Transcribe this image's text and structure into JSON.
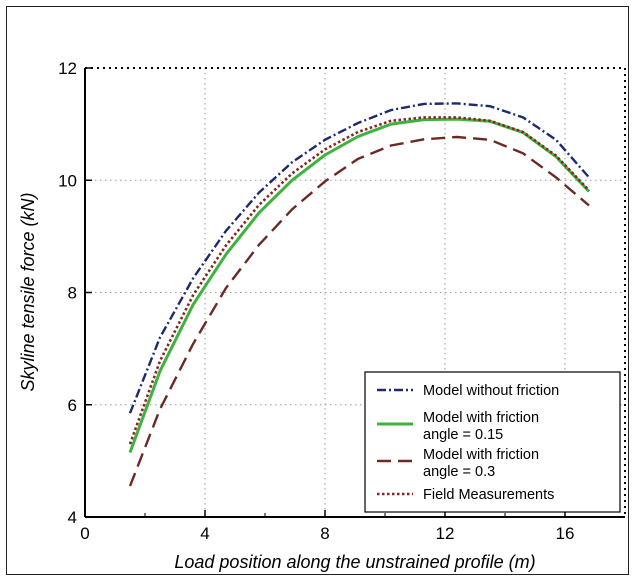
{
  "chart_data": {
    "type": "line",
    "title": "",
    "xlabel": "Load position along the unstrained profile  (m)",
    "ylabel": "Skyline tensile force (kN)",
    "xlim": [
      0,
      18
    ],
    "ylim": [
      4,
      12
    ],
    "xticks": [
      "0",
      "4",
      "8",
      "12",
      "16"
    ],
    "yticks": [
      "4",
      "6",
      "8",
      "10",
      "12"
    ],
    "grid": true,
    "legend_position": "bottom-right",
    "x": [
      1.5,
      2.5,
      3.6,
      4.7,
      5.8,
      6.9,
      8.0,
      9.1,
      10.2,
      11.3,
      12.4,
      13.5,
      14.6,
      15.7,
      16.8
    ],
    "series": [
      {
        "name": "Model without friction",
        "color": "#1f2a6e",
        "dash": "dashdot",
        "values": [
          5.85,
          7.2,
          8.25,
          9.1,
          9.78,
          10.32,
          10.72,
          11.02,
          11.25,
          11.36,
          11.37,
          11.32,
          11.12,
          10.72,
          10.05
        ]
      },
      {
        "name_lines": [
          "Model with friction",
          "angle = 0.15"
        ],
        "color": "#3db33d",
        "dash": "solid",
        "values": [
          5.15,
          6.6,
          7.78,
          8.68,
          9.42,
          10.0,
          10.45,
          10.78,
          11.0,
          11.08,
          11.09,
          11.05,
          10.85,
          10.42,
          9.8
        ]
      },
      {
        "name_lines": [
          "Model with friction",
          "angle = 0.3"
        ],
        "color": "#6b2a24",
        "dash": "longdash",
        "values": [
          4.55,
          5.92,
          7.08,
          8.08,
          8.85,
          9.48,
          9.98,
          10.38,
          10.62,
          10.73,
          10.77,
          10.72,
          10.48,
          10.05,
          9.55
        ]
      },
      {
        "name": "Field Measurements",
        "color": "#8a2222",
        "dash": "dotted",
        "values": [
          5.3,
          6.78,
          7.95,
          8.84,
          9.56,
          10.12,
          10.55,
          10.86,
          11.06,
          11.12,
          11.12,
          11.06,
          10.86,
          10.44,
          9.82
        ]
      }
    ]
  }
}
